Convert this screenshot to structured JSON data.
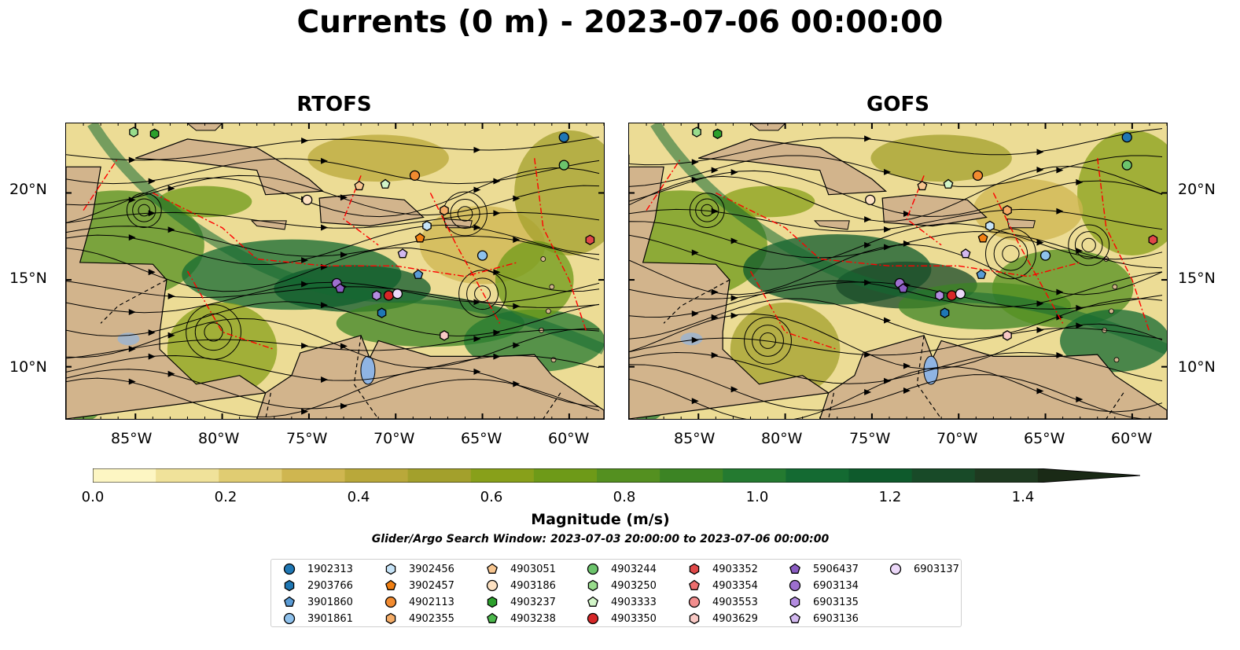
{
  "title": "Currents (0 m) - 2023-07-06 00:00:00",
  "panels": [
    {
      "title": "RTOFS"
    },
    {
      "title": "GOFS"
    }
  ],
  "axes": {
    "x_ticks": [
      "85°W",
      "80°W",
      "75°W",
      "70°W",
      "65°W",
      "60°W"
    ],
    "y_ticks": [
      "20°N",
      "15°N",
      "10°N"
    ]
  },
  "colorbar": {
    "label": "Magnitude (m/s)",
    "ticks": [
      "0.0",
      "0.2",
      "0.4",
      "0.6",
      "0.8",
      "1.0",
      "1.2",
      "1.4"
    ],
    "range": [
      0.0,
      1.5
    ],
    "extend": "max",
    "colors": [
      "#fdf6c3",
      "#f0e29a",
      "#e0cc72",
      "#cfb650",
      "#b9a83a",
      "#a3a02c",
      "#88a01a",
      "#6e9a18",
      "#549020",
      "#3c8424",
      "#247a30",
      "#146a32",
      "#0e5a2c",
      "#184a28",
      "#1e3a20",
      "#1a2a16"
    ]
  },
  "search_window": "Glider/Argo Search Window: 2023-07-03 20:00:00 to 2023-07-06 00:00:00",
  "legend": [
    {
      "id": "1902313",
      "marker": "circle",
      "color": "#1f77b4"
    },
    {
      "id": "2903766",
      "marker": "hexagon",
      "color": "#1f77b4"
    },
    {
      "id": "3901860",
      "marker": "pentagon",
      "color": "#5a9bd5"
    },
    {
      "id": "3901861",
      "marker": "circle",
      "color": "#8ec1ec"
    },
    {
      "id": "3902456",
      "marker": "hexagon",
      "color": "#c6e3f7"
    },
    {
      "id": "3902457",
      "marker": "pentagon",
      "color": "#f07f12"
    },
    {
      "id": "4902113",
      "marker": "circle",
      "color": "#f28b30"
    },
    {
      "id": "4902355",
      "marker": "hexagon",
      "color": "#f5ad68"
    },
    {
      "id": "4903051",
      "marker": "pentagon",
      "color": "#f8c690"
    },
    {
      "id": "4903186",
      "marker": "circle",
      "color": "#fde1c2"
    },
    {
      "id": "4903237",
      "marker": "hexagon",
      "color": "#2ca02c"
    },
    {
      "id": "4903238",
      "marker": "pentagon",
      "color": "#4cb84c"
    },
    {
      "id": "4903244",
      "marker": "circle",
      "color": "#6cc46c"
    },
    {
      "id": "4903250",
      "marker": "hexagon",
      "color": "#98dc8c"
    },
    {
      "id": "4903333",
      "marker": "pentagon",
      "color": "#d2f5c8"
    },
    {
      "id": "4903350",
      "marker": "circle",
      "color": "#d62728"
    },
    {
      "id": "4903352",
      "marker": "hexagon",
      "color": "#e04848"
    },
    {
      "id": "4903354",
      "marker": "pentagon",
      "color": "#ec6e6e"
    },
    {
      "id": "4903553",
      "marker": "circle",
      "color": "#f28e8e"
    },
    {
      "id": "4903629",
      "marker": "hexagon",
      "color": "#f9c9c5"
    },
    {
      "id": "5906437",
      "marker": "pentagon",
      "color": "#8a5cc2"
    },
    {
      "id": "6903134",
      "marker": "circle",
      "color": "#9d6fcf"
    },
    {
      "id": "6903135",
      "marker": "hexagon",
      "color": "#b38ce0"
    },
    {
      "id": "6903136",
      "marker": "pentagon",
      "color": "#d2b8ef"
    },
    {
      "id": "6903137",
      "marker": "circle",
      "color": "#ecd8f9"
    }
  ],
  "floats_on_map": [
    {
      "id": "1902313",
      "lon": -60.3,
      "lat": 23.2
    },
    {
      "id": "4903244",
      "lon": -60.3,
      "lat": 21.6
    },
    {
      "id": "4902113",
      "lon": -68.9,
      "lat": 21.0
    },
    {
      "id": "4903333",
      "lon": -70.6,
      "lat": 20.5
    },
    {
      "id": "4903051",
      "lon": -72.1,
      "lat": 20.4
    },
    {
      "id": "4903186",
      "lon": -75.1,
      "lat": 19.6
    },
    {
      "id": "4902355",
      "lon": -67.2,
      "lat": 19.0
    },
    {
      "id": "3902456",
      "lon": -68.2,
      "lat": 18.1
    },
    {
      "id": "3902457",
      "lon": -68.6,
      "lat": 17.4
    },
    {
      "id": "4903352",
      "lon": -58.8,
      "lat": 17.3
    },
    {
      "id": "6903136",
      "lon": -69.6,
      "lat": 16.5
    },
    {
      "id": "3901861",
      "lon": -65.0,
      "lat": 16.4
    },
    {
      "id": "3901860",
      "lon": -68.7,
      "lat": 15.3
    },
    {
      "id": "6903134",
      "lon": -73.4,
      "lat": 14.8
    },
    {
      "id": "5906437",
      "lon": -73.2,
      "lat": 14.5
    },
    {
      "id": "6903135",
      "lon": -71.1,
      "lat": 14.1
    },
    {
      "id": "4903350",
      "lon": -70.4,
      "lat": 14.1
    },
    {
      "id": "6903137",
      "lon": -69.9,
      "lat": 14.2
    },
    {
      "id": "2903766",
      "lon": -70.8,
      "lat": 13.1
    },
    {
      "id": "4903629",
      "lon": -67.2,
      "lat": 11.8
    },
    {
      "id": "4903237",
      "lon": -83.9,
      "lat": 23.4
    },
    {
      "id": "4903250",
      "lon": -85.1,
      "lat": 23.5
    }
  ]
}
